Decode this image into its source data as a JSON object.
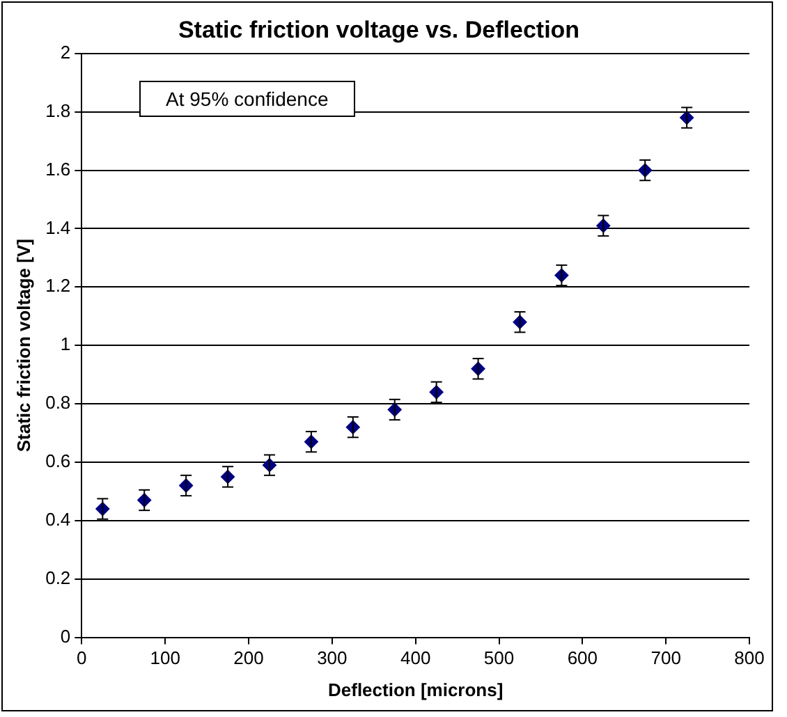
{
  "chart_data": {
    "type": "scatter",
    "title": "Static friction voltage vs. Deflection",
    "xlabel": "Deflection [microns]",
    "ylabel": "Static friction voltage [V]",
    "annotations": [
      "At 95% confidence"
    ],
    "x": [
      25,
      75,
      125,
      175,
      225,
      275,
      325,
      375,
      425,
      475,
      525,
      575,
      625,
      675,
      725
    ],
    "series": [
      {
        "color": "#000080",
        "values": [
          0.44,
          0.47,
          0.52,
          0.55,
          0.59,
          0.67,
          0.72,
          0.78,
          0.84,
          0.92,
          1.08,
          1.24,
          1.41,
          1.6,
          1.78
        ],
        "errors": [
          0.035,
          0.035,
          0.035,
          0.035,
          0.035,
          0.035,
          0.035,
          0.035,
          0.035,
          0.035,
          0.035,
          0.035,
          0.035,
          0.035,
          0.035
        ]
      }
    ],
    "xlim": [
      0,
      800
    ],
    "xticks": [
      0,
      100,
      200,
      300,
      400,
      500,
      600,
      700,
      800
    ],
    "ylim": [
      0,
      2
    ],
    "yticks": [
      0,
      0.2,
      0.4,
      0.6,
      0.8,
      1,
      1.2,
      1.4,
      1.6,
      1.8,
      2
    ],
    "grid": "y",
    "legend": false,
    "marker": "diamond"
  }
}
